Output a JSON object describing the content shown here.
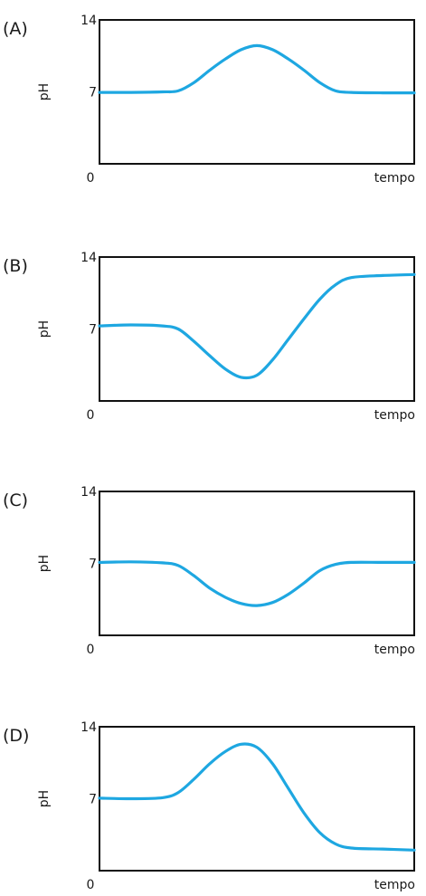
{
  "chart_data": [
    {
      "type": "line",
      "panel_label": "(A)",
      "ylabel": "pH",
      "xlabel": "tempo",
      "x_origin_label": "0",
      "ylim": [
        0,
        14
      ],
      "yticks": [
        7,
        14
      ],
      "grid": false,
      "color": "#1ea7e1",
      "x": [
        0,
        10,
        20,
        25,
        30,
        35,
        40,
        45,
        50,
        55,
        60,
        65,
        70,
        75,
        80,
        90,
        100
      ],
      "y": [
        6.95,
        6.95,
        7.0,
        7.1,
        7.9,
        9.1,
        10.2,
        11.1,
        11.5,
        11.1,
        10.2,
        9.1,
        7.9,
        7.1,
        6.95,
        6.9,
        6.9
      ]
    },
    {
      "type": "line",
      "panel_label": "(B)",
      "ylabel": "pH",
      "xlabel": "tempo",
      "x_origin_label": "0",
      "ylim": [
        0,
        14
      ],
      "yticks": [
        7,
        14
      ],
      "grid": false,
      "color": "#1ea7e1",
      "x": [
        0,
        10,
        20,
        25,
        30,
        35,
        40,
        45,
        50,
        55,
        60,
        65,
        70,
        75,
        80,
        90,
        100
      ],
      "y": [
        7.3,
        7.4,
        7.3,
        7.0,
        5.8,
        4.4,
        3.1,
        2.3,
        2.5,
        4.0,
        6.0,
        8.0,
        9.9,
        11.3,
        12.0,
        12.2,
        12.3
      ]
    },
    {
      "type": "line",
      "panel_label": "(C)",
      "ylabel": "pH",
      "xlabel": "tempo",
      "x_origin_label": "0",
      "ylim": [
        0,
        14
      ],
      "yticks": [
        7,
        14
      ],
      "grid": false,
      "color": "#1ea7e1",
      "x": [
        0,
        10,
        20,
        25,
        30,
        35,
        40,
        45,
        50,
        55,
        60,
        65,
        70,
        75,
        80,
        90,
        100
      ],
      "y": [
        7.1,
        7.15,
        7.05,
        6.8,
        5.8,
        4.6,
        3.7,
        3.1,
        2.9,
        3.2,
        4.0,
        5.1,
        6.3,
        6.9,
        7.1,
        7.1,
        7.1
      ]
    },
    {
      "type": "line",
      "panel_label": "(D)",
      "ylabel": "pH",
      "xlabel": "tempo",
      "x_origin_label": "0",
      "ylim": [
        0,
        14
      ],
      "yticks": [
        7,
        14
      ],
      "grid": false,
      "color": "#1ea7e1",
      "x": [
        0,
        10,
        20,
        25,
        30,
        35,
        40,
        45,
        50,
        55,
        60,
        65,
        70,
        75,
        80,
        90,
        100
      ],
      "y": [
        7.05,
        7.0,
        7.1,
        7.6,
        8.9,
        10.4,
        11.6,
        12.3,
        12.0,
        10.4,
        8.0,
        5.6,
        3.7,
        2.6,
        2.2,
        2.1,
        2.0
      ]
    }
  ]
}
